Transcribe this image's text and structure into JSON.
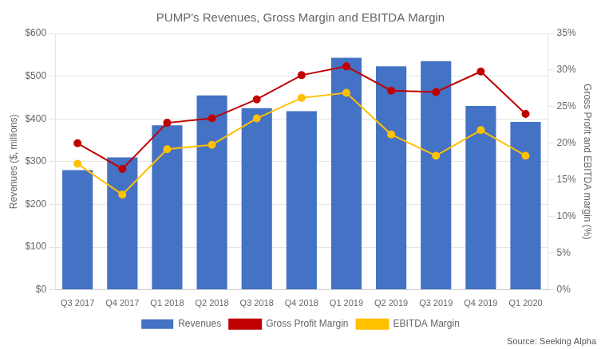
{
  "chart_data": {
    "type": "bar",
    "title": "PUMP's Revenues, Gross Margin and EBITDA Margin",
    "categories": [
      "Q3 2017",
      "Q4 2017",
      "Q1 2018",
      "Q2 2018",
      "Q3 2018",
      "Q4 2018",
      "Q1 2019",
      "Q2 2019",
      "Q3 2019",
      "Q4 2019",
      "Q1 2020"
    ],
    "series": [
      {
        "name": "Revenues",
        "type": "bar",
        "color": "#4472C4",
        "values": [
          280,
          310,
          385,
          455,
          425,
          418,
          543,
          523,
          535,
          430,
          393
        ]
      },
      {
        "name": "Gross Profit Margin",
        "type": "line",
        "color": "#C00000",
        "marker": "circle",
        "axis": "y2",
        "values": [
          0.2,
          0.165,
          0.228,
          0.234,
          0.26,
          0.293,
          0.305,
          0.272,
          0.27,
          0.298,
          0.24
        ]
      },
      {
        "name": "EBITDA Margin",
        "type": "line",
        "color": "#FFC000",
        "marker": "circle",
        "axis": "y2",
        "values": [
          0.172,
          0.13,
          0.192,
          0.198,
          0.234,
          0.262,
          0.269,
          0.212,
          0.183,
          0.218,
          0.183
        ]
      }
    ],
    "ylabel": "Revenues ($, millions)",
    "y2label": "Gross Profit and EBITDA margin (%)",
    "ylim": [
      0,
      600
    ],
    "yticks": [
      {
        "value": 0,
        "label": "$0"
      },
      {
        "value": 100,
        "label": "$100"
      },
      {
        "value": 200,
        "label": "$200"
      },
      {
        "value": 300,
        "label": "$300"
      },
      {
        "value": 400,
        "label": "$400"
      },
      {
        "value": 500,
        "label": "$500"
      },
      {
        "value": 600,
        "label": "$600"
      }
    ],
    "y2lim": [
      0,
      0.35
    ],
    "y2ticks": [
      {
        "value": 0.0,
        "label": "0%"
      },
      {
        "value": 0.05,
        "label": "5%"
      },
      {
        "value": 0.1,
        "label": "10%"
      },
      {
        "value": 0.15,
        "label": "15%"
      },
      {
        "value": 0.2,
        "label": "20%"
      },
      {
        "value": 0.25,
        "label": "25%"
      },
      {
        "value": 0.3,
        "label": "30%"
      },
      {
        "value": 0.35,
        "label": "35%"
      }
    ],
    "grid": true,
    "legend": "bottom",
    "annotation": "Source: Seeking Alpha"
  }
}
